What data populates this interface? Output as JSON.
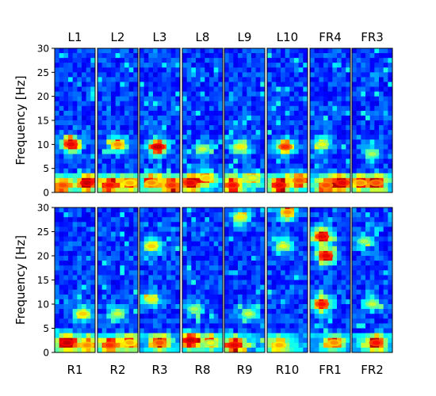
{
  "chart_data": [
    {
      "type": "heatmap",
      "panels": [
        "L1",
        "L2",
        "L3",
        "L8",
        "L9",
        "L10",
        "FR4",
        "FR3"
      ],
      "ylabel": "Frequency [Hz]",
      "ylim": [
        0,
        30
      ],
      "yticks": [
        "0",
        "5",
        "10",
        "15",
        "20",
        "25",
        "30"
      ],
      "colormap": "jet",
      "hotspots": [
        [
          {
            "f": 10,
            "x": 0.4,
            "i": 0.85
          },
          {
            "f": 2,
            "x": 0.8,
            "i": 0.9
          },
          {
            "f": 1.5,
            "x": 0.2,
            "i": 0.7
          }
        ],
        [
          {
            "f": 10,
            "x": 0.5,
            "i": 0.6
          },
          {
            "f": 1.5,
            "x": 0.3,
            "i": 0.8
          },
          {
            "f": 2,
            "x": 0.8,
            "i": 0.55
          }
        ],
        [
          {
            "f": 9.5,
            "x": 0.45,
            "i": 0.9
          },
          {
            "f": 1.5,
            "x": 0.8,
            "i": 0.75
          },
          {
            "f": 2,
            "x": 0.3,
            "i": 0.6
          }
        ],
        [
          {
            "f": 2,
            "x": 0.2,
            "i": 0.85
          },
          {
            "f": 3,
            "x": 0.6,
            "i": 0.5
          },
          {
            "f": 9,
            "x": 0.5,
            "i": 0.35
          }
        ],
        [
          {
            "f": 1.5,
            "x": 0.2,
            "i": 0.8
          },
          {
            "f": 9.5,
            "x": 0.4,
            "i": 0.45
          },
          {
            "f": 3,
            "x": 0.7,
            "i": 0.4
          }
        ],
        [
          {
            "f": 9.5,
            "x": 0.45,
            "i": 0.75
          },
          {
            "f": 1.5,
            "x": 0.3,
            "i": 0.85
          },
          {
            "f": 2.5,
            "x": 0.8,
            "i": 0.7
          }
        ],
        [
          {
            "f": 2,
            "x": 0.8,
            "i": 0.85
          },
          {
            "f": 1.5,
            "x": 0.4,
            "i": 0.7
          },
          {
            "f": 10,
            "x": 0.3,
            "i": 0.4
          }
        ],
        [
          {
            "f": 2,
            "x": 0.6,
            "i": 0.7
          },
          {
            "f": 2,
            "x": 0.2,
            "i": 0.6
          },
          {
            "f": 8,
            "x": 0.5,
            "i": 0.3
          }
        ]
      ]
    },
    {
      "type": "heatmap",
      "panels": [
        "R1",
        "R2",
        "R3",
        "R8",
        "R9",
        "R10",
        "FR1",
        "FR2"
      ],
      "ylabel": "Frequency [Hz]",
      "ylim": [
        0,
        30
      ],
      "yticks": [
        "0",
        "5",
        "10",
        "15",
        "20",
        "25",
        "30"
      ],
      "colormap": "jet",
      "hotspots": [
        [
          {
            "f": 2,
            "x": 0.3,
            "i": 0.9
          },
          {
            "f": 8,
            "x": 0.7,
            "i": 0.5
          },
          {
            "f": 1.5,
            "x": 0.8,
            "i": 0.6
          }
        ],
        [
          {
            "f": 1.5,
            "x": 0.3,
            "i": 0.75
          },
          {
            "f": 2,
            "x": 0.8,
            "i": 0.55
          },
          {
            "f": 8,
            "x": 0.5,
            "i": 0.35
          }
        ],
        [
          {
            "f": 2,
            "x": 0.5,
            "i": 0.7
          },
          {
            "f": 22,
            "x": 0.3,
            "i": 0.5
          },
          {
            "f": 11,
            "x": 0.3,
            "i": 0.45
          }
        ],
        [
          {
            "f": 2.5,
            "x": 0.2,
            "i": 0.9
          },
          {
            "f": 2,
            "x": 0.7,
            "i": 0.4
          },
          {
            "f": 9,
            "x": 0.3,
            "i": 0.3
          }
        ],
        [
          {
            "f": 1.5,
            "x": 0.25,
            "i": 0.85
          },
          {
            "f": 28,
            "x": 0.4,
            "i": 0.45
          },
          {
            "f": 8,
            "x": 0.6,
            "i": 0.35
          }
        ],
        [
          {
            "f": 29,
            "x": 0.5,
            "i": 0.6
          },
          {
            "f": 1.5,
            "x": 0.3,
            "i": 0.55
          },
          {
            "f": 22,
            "x": 0.4,
            "i": 0.4
          }
        ],
        [
          {
            "f": 20,
            "x": 0.4,
            "i": 0.85
          },
          {
            "f": 24,
            "x": 0.3,
            "i": 0.85
          },
          {
            "f": 10,
            "x": 0.3,
            "i": 0.8
          },
          {
            "f": 2,
            "x": 0.6,
            "i": 0.6
          }
        ],
        [
          {
            "f": 2,
            "x": 0.6,
            "i": 0.8
          },
          {
            "f": 10,
            "x": 0.5,
            "i": 0.35
          },
          {
            "f": 23,
            "x": 0.3,
            "i": 0.3
          }
        ]
      ]
    }
  ]
}
